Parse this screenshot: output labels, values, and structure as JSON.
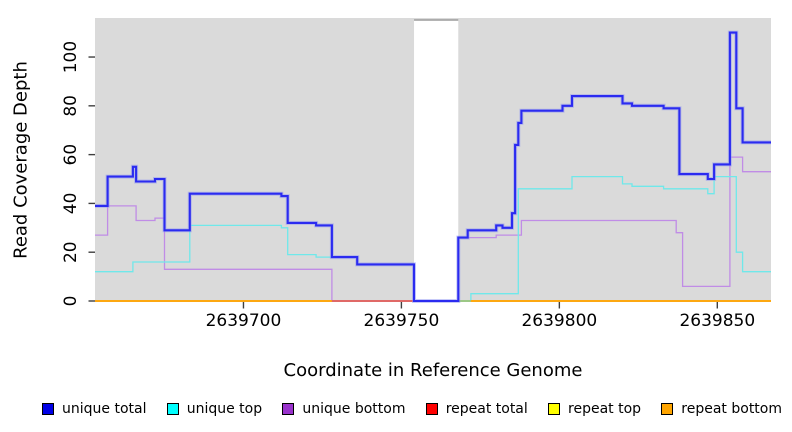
{
  "figure": {
    "xlabel": "Coordinate in Reference Genome",
    "ylabel": "Read Coverage Depth"
  },
  "chart_data": {
    "type": "line",
    "step": true,
    "title": "",
    "xlabel": "Coordinate in Reference Genome",
    "ylabel": "Read Coverage Depth",
    "xlim": [
      2639653,
      2639867
    ],
    "ylim": [
      0,
      116
    ],
    "x_ticks": [
      2639700,
      2639750,
      2639800,
      2639850
    ],
    "y_ticks": [
      0,
      20,
      40,
      60,
      80,
      100
    ],
    "grid": false,
    "legend_position": "bottom",
    "plot_bg": "#DADADA",
    "gap_region": {
      "from": 2639754,
      "to": 2639768
    },
    "series": [
      {
        "name": "repeat total",
        "color": "#E03038",
        "width": 1.4,
        "points": [
          [
            2639653,
            0
          ]
        ]
      },
      {
        "name": "repeat top",
        "color": "#FFFF00",
        "width": 1.4,
        "points": [
          [
            2639653,
            0
          ]
        ]
      },
      {
        "name": "unique bottom",
        "color": "#C08CE6",
        "width": 1.3,
        "points": [
          [
            2639653,
            27
          ],
          [
            2639657,
            39
          ],
          [
            2639666,
            33
          ],
          [
            2639672,
            34
          ],
          [
            2639675,
            13
          ],
          [
            2639728,
            0
          ],
          [
            2639768,
            26
          ],
          [
            2639780,
            27
          ],
          [
            2639788,
            33
          ],
          [
            2639837,
            28
          ],
          [
            2639839,
            6
          ],
          [
            2639854,
            59
          ],
          [
            2639858,
            53
          ]
        ]
      },
      {
        "name": "unique top",
        "color": "#6FE8EA",
        "width": 1.3,
        "points": [
          [
            2639653,
            12
          ],
          [
            2639665,
            16
          ],
          [
            2639683,
            31
          ],
          [
            2639712,
            30
          ],
          [
            2639714,
            19
          ],
          [
            2639723,
            18
          ],
          [
            2639736,
            15
          ],
          [
            2639754,
            0
          ],
          [
            2639772,
            3
          ],
          [
            2639787,
            46
          ],
          [
            2639804,
            51
          ],
          [
            2639820,
            48
          ],
          [
            2639823,
            47
          ],
          [
            2639833,
            46
          ],
          [
            2639847,
            44
          ],
          [
            2639849,
            51
          ],
          [
            2639856,
            20
          ],
          [
            2639858,
            12
          ]
        ]
      },
      {
        "name": "repeat bottom",
        "color": "#FFA40A",
        "width": 1.7,
        "points": [
          [
            2639653,
            0
          ]
        ]
      },
      {
        "name": "unique total",
        "color": "#2B2BF0",
        "width": 2.1,
        "halo": "#9095F2",
        "points": [
          [
            2639653,
            39
          ],
          [
            2639657,
            51
          ],
          [
            2639665,
            55
          ],
          [
            2639666,
            49
          ],
          [
            2639672,
            50
          ],
          [
            2639675,
            29
          ],
          [
            2639683,
            44
          ],
          [
            2639712,
            43
          ],
          [
            2639714,
            32
          ],
          [
            2639723,
            31
          ],
          [
            2639728,
            18
          ],
          [
            2639736,
            15
          ],
          [
            2639754,
            0
          ],
          [
            2639768,
            26
          ],
          [
            2639771,
            29
          ],
          [
            2639780,
            31
          ],
          [
            2639782,
            30
          ],
          [
            2639785,
            36
          ],
          [
            2639786,
            64
          ],
          [
            2639787,
            73
          ],
          [
            2639788,
            78
          ],
          [
            2639801,
            80
          ],
          [
            2639804,
            84
          ],
          [
            2639820,
            81
          ],
          [
            2639823,
            80
          ],
          [
            2639833,
            79
          ],
          [
            2639838,
            52
          ],
          [
            2639847,
            50
          ],
          [
            2639849,
            56
          ],
          [
            2639854,
            110
          ],
          [
            2639856,
            79
          ],
          [
            2639858,
            65
          ]
        ]
      }
    ],
    "zero_overlays": [
      {
        "from": 2639728,
        "to": 2639768,
        "color": "#D8547E",
        "width": 1.5
      },
      {
        "from": 2639768,
        "to": 2639772,
        "color": "#7FD0A8",
        "width": 1.5
      }
    ],
    "legend": [
      {
        "label": "unique total",
        "color": "#0000E6"
      },
      {
        "label": "unique top",
        "color": "#00FFFF"
      },
      {
        "label": "unique bottom",
        "color": "#9932CC"
      },
      {
        "label": "repeat total",
        "color": "#FF0000"
      },
      {
        "label": "repeat top",
        "color": "#FFFF00"
      },
      {
        "label": "repeat bottom",
        "color": "#FFA500"
      }
    ]
  }
}
